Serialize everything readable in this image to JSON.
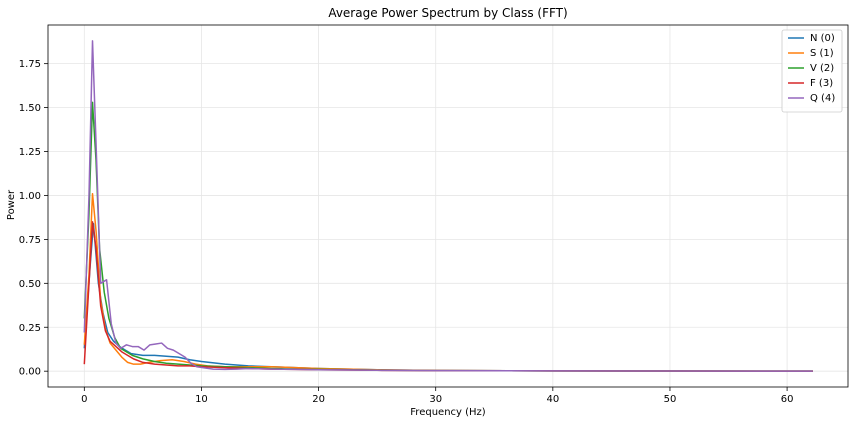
{
  "chart_data": {
    "type": "line",
    "title": "Average Power Spectrum by Class (FFT)",
    "xlabel": "Frequency (Hz)",
    "ylabel": "Power",
    "xlim": [
      -3.1,
      65.2
    ],
    "ylim": [
      -0.09,
      1.97
    ],
    "xticks": [
      0,
      10,
      20,
      30,
      40,
      50,
      60
    ],
    "yticks": [
      0.0,
      0.25,
      0.5,
      0.75,
      1.0,
      1.25,
      1.5,
      1.75
    ],
    "ytick_labels": [
      "0.00",
      "0.25",
      "0.50",
      "0.75",
      "1.00",
      "1.25",
      "1.50",
      "1.75"
    ],
    "grid": true,
    "legend_position": "top-right",
    "series": [
      {
        "name": "N (0)",
        "color": "#1f77b4",
        "x": [
          0,
          0.5,
          0.78,
          1.2,
          1.6,
          2.0,
          2.5,
          3.0,
          3.5,
          4.0,
          5.0,
          6.0,
          7.0,
          8.0,
          9.0,
          10.0,
          12.0,
          14.0,
          16.0,
          18.0,
          20.0,
          25.0,
          30.0,
          40.0,
          50.0,
          62.2
        ],
        "y": [
          0.13,
          0.6,
          0.84,
          0.5,
          0.33,
          0.22,
          0.17,
          0.14,
          0.12,
          0.1,
          0.09,
          0.09,
          0.085,
          0.08,
          0.065,
          0.055,
          0.04,
          0.03,
          0.025,
          0.02,
          0.015,
          0.008,
          0.004,
          0.002,
          0.001,
          0.0
        ]
      },
      {
        "name": "S (1)",
        "color": "#ff7f0e",
        "x": [
          0,
          0.4,
          0.7,
          1.0,
          1.4,
          1.8,
          2.2,
          2.7,
          3.2,
          3.7,
          4.2,
          4.8,
          5.5,
          6.5,
          7.5,
          8.5,
          9.5,
          10.5,
          12.0,
          14.0,
          16.0,
          18.0,
          20.0,
          25.0,
          30.0,
          40.0,
          50.0,
          62.2
        ],
        "y": [
          0.15,
          0.55,
          1.01,
          0.8,
          0.4,
          0.24,
          0.16,
          0.12,
          0.08,
          0.05,
          0.04,
          0.04,
          0.05,
          0.06,
          0.065,
          0.055,
          0.04,
          0.03,
          0.025,
          0.025,
          0.025,
          0.02,
          0.015,
          0.008,
          0.004,
          0.002,
          0.001,
          0.0
        ]
      },
      {
        "name": "V (2)",
        "color": "#2ca02c",
        "x": [
          0,
          0.4,
          0.7,
          1.0,
          1.3,
          1.7,
          2.1,
          2.6,
          3.1,
          3.6,
          4.1,
          5.0,
          6.0,
          7.0,
          8.0,
          9.0,
          10.0,
          12.0,
          14.0,
          16.0,
          18.0,
          20.0,
          25.0,
          30.0,
          40.0,
          50.0,
          62.2
        ],
        "y": [
          0.3,
          0.9,
          1.53,
          1.2,
          0.7,
          0.45,
          0.3,
          0.19,
          0.13,
          0.11,
          0.09,
          0.07,
          0.055,
          0.045,
          0.04,
          0.035,
          0.03,
          0.025,
          0.02,
          0.015,
          0.012,
          0.01,
          0.006,
          0.003,
          0.002,
          0.001,
          0.0
        ]
      },
      {
        "name": "F (3)",
        "color": "#d62728",
        "x": [
          0,
          0.4,
          0.7,
          1.0,
          1.4,
          1.8,
          2.2,
          2.7,
          3.2,
          3.7,
          4.2,
          5.0,
          6.0,
          7.0,
          8.0,
          9.0,
          10.0,
          12.0,
          14.0,
          16.0,
          18.0,
          20.0,
          25.0,
          30.0,
          40.0,
          50.0,
          62.2
        ],
        "y": [
          0.04,
          0.5,
          0.85,
          0.7,
          0.37,
          0.23,
          0.17,
          0.14,
          0.11,
          0.09,
          0.07,
          0.05,
          0.04,
          0.035,
          0.03,
          0.03,
          0.025,
          0.02,
          0.015,
          0.012,
          0.01,
          0.008,
          0.005,
          0.003,
          0.002,
          0.001,
          0.0
        ]
      },
      {
        "name": "Q (4)",
        "color": "#9467bd",
        "x": [
          0,
          0.4,
          0.7,
          1.0,
          1.4,
          1.9,
          2.3,
          2.7,
          3.1,
          3.6,
          4.1,
          4.6,
          5.1,
          5.6,
          6.1,
          6.6,
          7.1,
          7.6,
          8.1,
          8.6,
          9.1,
          9.6,
          10.1,
          11.0,
          12.0,
          13.0,
          14.0,
          16.0,
          18.0,
          20.0,
          25.0,
          30.0,
          40.0,
          50.0,
          62.2
        ],
        "y": [
          0.22,
          1.0,
          1.88,
          1.3,
          0.5,
          0.52,
          0.27,
          0.16,
          0.13,
          0.15,
          0.14,
          0.14,
          0.12,
          0.15,
          0.155,
          0.16,
          0.13,
          0.12,
          0.1,
          0.08,
          0.045,
          0.025,
          0.02,
          0.012,
          0.01,
          0.012,
          0.015,
          0.012,
          0.01,
          0.008,
          0.005,
          0.003,
          0.002,
          0.001,
          0.0
        ]
      }
    ]
  }
}
